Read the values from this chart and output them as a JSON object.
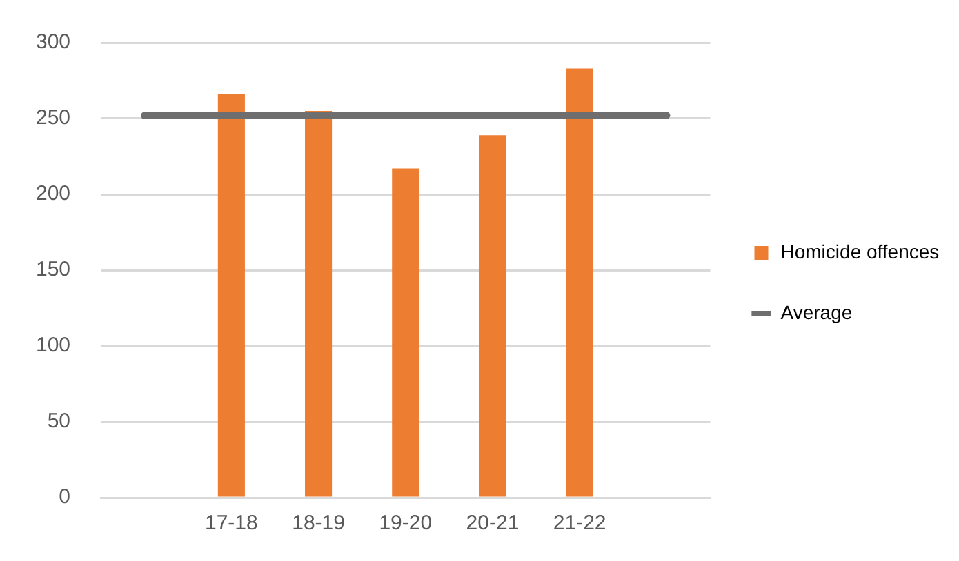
{
  "chart_data": {
    "type": "bar",
    "categories": [
      null,
      "17-18",
      "18-19",
      "19-20",
      "20-21",
      "21-22",
      null
    ],
    "series": [
      {
        "name": "Homicide offences",
        "color": "#ed7d31",
        "values": [
          null,
          266,
          255,
          217,
          239,
          283,
          null
        ]
      },
      {
        "name": "Average",
        "type": "line",
        "color": "#6e6e6e",
        "values": [
          252,
          252,
          252,
          252,
          252,
          252,
          252
        ]
      }
    ],
    "ylim": [
      0,
      300
    ],
    "yticks": [
      0,
      50,
      100,
      150,
      200,
      250,
      300
    ],
    "grid": "y",
    "legend": "right",
    "marker": "none"
  }
}
